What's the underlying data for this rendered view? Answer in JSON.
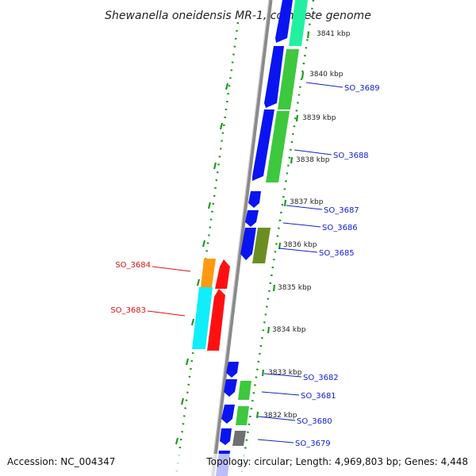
{
  "title": "Shewanella oneidensis MR-1, complete genome",
  "footer": {
    "accession": "Accession: NC_004347",
    "summary": "Topology: circular; Length: 4,969,803 bp; Genes: 4,448"
  },
  "colors": {
    "blue": "#0a14f0",
    "green": "#3ec83e",
    "aqua": "#22f0a0",
    "olive": "#6b8e23",
    "orange": "#ff9a10",
    "red": "#ff1010",
    "cyan": "#10eefa",
    "gray": "#707070",
    "tick_green": "#1e9a1e",
    "label_blue": "#1020d0",
    "label_red": "#e01010",
    "backbone": "#8a8a8a"
  },
  "kbp_labels": [
    "3841 kbp",
    "3840 kbp",
    "3839 kbp",
    "3838 kbp",
    "3837 kbp",
    "3836 kbp",
    "3835 kbp",
    "3834 kbp",
    "3833 kbp",
    "3832 kbp"
  ],
  "gene_labels": [
    {
      "text": "SO_3689",
      "color": "blue"
    },
    {
      "text": "SO_3688",
      "color": "blue"
    },
    {
      "text": "SO_3687",
      "color": "blue"
    },
    {
      "text": "SO_3686",
      "color": "blue"
    },
    {
      "text": "SO_3685",
      "color": "blue"
    },
    {
      "text": "SO_3684",
      "color": "red"
    },
    {
      "text": "SO_3683",
      "color": "red"
    },
    {
      "text": "SO_3682",
      "color": "blue"
    },
    {
      "text": "SO_3681",
      "color": "blue"
    },
    {
      "text": "SO_3680",
      "color": "blue"
    },
    {
      "text": "SO_3679",
      "color": "blue"
    }
  ]
}
